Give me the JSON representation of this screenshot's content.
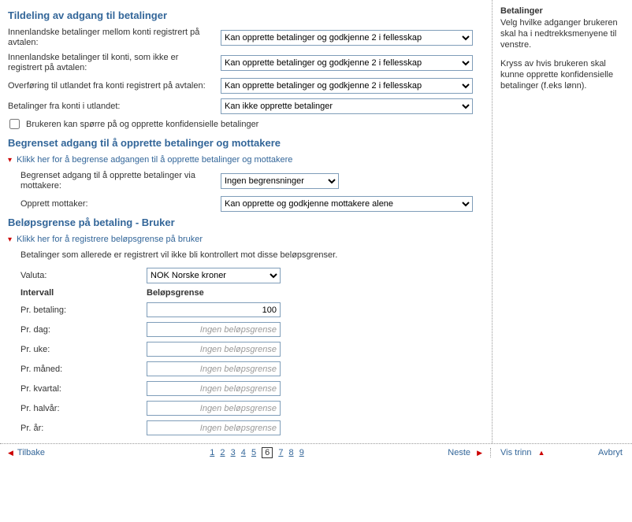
{
  "section1": {
    "title": "Tildeling av adgang til betalinger",
    "rows": [
      {
        "label": "Innenlandske betalinger mellom konti registrert på avtalen:",
        "value": "Kan opprette betalinger og godkjenne 2 i fellesskap"
      },
      {
        "label": "Innenlandske betalinger til konti, som ikke er registrert på avtalen:",
        "value": "Kan opprette betalinger og godkjenne 2 i fellesskap"
      },
      {
        "label": "Overføring til utlandet fra konti registrert på avtalen:",
        "value": "Kan opprette betalinger og godkjenne 2 i fellesskap"
      },
      {
        "label": "Betalinger fra konti i utlandet:",
        "value": "Kan ikke opprette betalinger"
      }
    ],
    "checkbox_label": "Brukeren kan spørre på og opprette konfidensielle betalinger"
  },
  "section2": {
    "title": "Begrenset adgang til å opprette betalinger og mottakere",
    "expand_text": "Klikk her for å begrense adgangen til å opprette betalinger og mottakere",
    "row1_label": "Begrenset adgang til å opprette betalinger via mottakere:",
    "row1_value": "Ingen begrensninger",
    "row2_label": "Opprett mottaker:",
    "row2_value": "Kan opprette og godkjenne mottakere alene"
  },
  "section3": {
    "title": "Beløpsgrense på betaling - Bruker",
    "expand_text": "Klikk her for å registrere beløpsgrense på bruker",
    "info": "Betalinger som allerede er registrert vil ikke bli kontrollert mot disse beløpsgrenser.",
    "currency_label": "Valuta:",
    "currency_value": "NOK Norske kroner",
    "col1": "Intervall",
    "col2": "Beløpsgrense",
    "placeholder": "Ingen beløpsgrense",
    "limits": [
      {
        "label": "Pr. betaling:",
        "value": "100"
      },
      {
        "label": "Pr. dag:",
        "value": ""
      },
      {
        "label": "Pr. uke:",
        "value": ""
      },
      {
        "label": "Pr. måned:",
        "value": ""
      },
      {
        "label": "Pr. kvartal:",
        "value": ""
      },
      {
        "label": "Pr. halvår:",
        "value": ""
      },
      {
        "label": "Pr. år:",
        "value": ""
      }
    ]
  },
  "side": {
    "title": "Betalinger",
    "p1": "Velg hvilke adganger brukeren skal ha i nedtrekksmenyene til venstre.",
    "p2": "Kryss av hvis brukeren skal kunne opprette konfidensielle betalinger (f.eks lønn)."
  },
  "footer": {
    "back": "Tilbake",
    "next": "Neste",
    "show_steps": "Vis trinn",
    "cancel": "Avbryt",
    "pages": [
      "1",
      "2",
      "3",
      "4",
      "5",
      "6",
      "7",
      "8",
      "9"
    ],
    "current": "6"
  }
}
